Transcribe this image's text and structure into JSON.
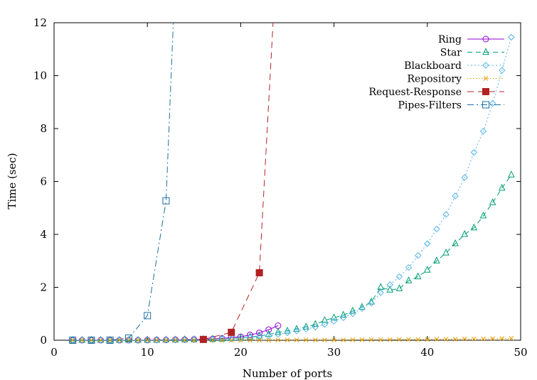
{
  "chart_data": {
    "type": "line",
    "title": "",
    "xlabel": "Number of ports",
    "ylabel": "Time (sec)",
    "xlim": [
      0,
      50
    ],
    "ylim": [
      0,
      12
    ],
    "xticks": [
      0,
      10,
      20,
      30,
      40,
      50
    ],
    "yticks": [
      0,
      2,
      4,
      6,
      8,
      10,
      12
    ],
    "grid": false,
    "legend_position": "top-right",
    "series": [
      {
        "name": "Ring",
        "color": "#9400d3",
        "dash": "solid",
        "marker": "circle",
        "x": [
          2,
          3,
          4,
          5,
          6,
          7,
          8,
          9,
          10,
          11,
          12,
          13,
          14,
          15,
          16,
          17,
          18,
          19,
          20,
          21,
          22,
          23,
          24
        ],
        "y": [
          0,
          0,
          0,
          0,
          0,
          0,
          0,
          0,
          0.005,
          0.01,
          0.01,
          0.02,
          0.02,
          0.03,
          0.04,
          0.05,
          0.07,
          0.1,
          0.13,
          0.2,
          0.28,
          0.4,
          0.55
        ]
      },
      {
        "name": "Star",
        "color": "#009e73",
        "dash": "dash",
        "marker": "triangle",
        "x": [
          2,
          3,
          4,
          5,
          6,
          7,
          8,
          9,
          10,
          11,
          12,
          13,
          14,
          15,
          16,
          17,
          18,
          19,
          20,
          21,
          22,
          23,
          24,
          25,
          26,
          27,
          28,
          29,
          30,
          31,
          32,
          33,
          34,
          35,
          36,
          37,
          38,
          39,
          40,
          41,
          42,
          43,
          44,
          45,
          46,
          47,
          48,
          49
        ],
        "y": [
          0,
          0,
          0,
          0,
          0,
          0,
          0,
          0,
          0,
          0,
          0.01,
          0.01,
          0.02,
          0.02,
          0.03,
          0.04,
          0.05,
          0.07,
          0.09,
          0.12,
          0.16,
          0.22,
          0.3,
          0.35,
          0.42,
          0.5,
          0.6,
          0.75,
          0.85,
          0.95,
          1.1,
          1.25,
          1.45,
          2.0,
          1.9,
          1.95,
          2.25,
          2.4,
          2.65,
          3.0,
          3.3,
          3.65,
          4.0,
          4.25,
          4.7,
          5.2,
          5.75,
          6.25
        ]
      },
      {
        "name": "Blackboard",
        "color": "#56b4e9",
        "dash": "dot",
        "marker": "diamond",
        "x": [
          2,
          3,
          4,
          5,
          6,
          7,
          8,
          9,
          10,
          11,
          12,
          13,
          14,
          15,
          16,
          17,
          18,
          19,
          20,
          21,
          22,
          23,
          24,
          25,
          26,
          27,
          28,
          29,
          30,
          31,
          32,
          33,
          34,
          35,
          36,
          37,
          38,
          39,
          40,
          41,
          42,
          43,
          44,
          45,
          46,
          47,
          48,
          49
        ],
        "y": [
          0,
          0,
          0,
          0,
          0,
          0,
          0,
          0,
          0,
          0,
          0.01,
          0.01,
          0.01,
          0.02,
          0.02,
          0.03,
          0.04,
          0.05,
          0.07,
          0.1,
          0.13,
          0.17,
          0.22,
          0.28,
          0.35,
          0.42,
          0.5,
          0.6,
          0.72,
          0.85,
          1.0,
          1.2,
          1.4,
          1.8,
          2.1,
          2.4,
          2.75,
          3.2,
          3.65,
          4.2,
          4.75,
          5.45,
          6.15,
          7.1,
          7.9,
          8.95,
          10.2,
          11.45
        ]
      },
      {
        "name": "Repository",
        "color": "#e69f00",
        "dash": "dotted",
        "marker": "cross",
        "x": [
          2,
          3,
          4,
          5,
          6,
          7,
          8,
          9,
          10,
          11,
          12,
          13,
          14,
          15,
          16,
          17,
          18,
          19,
          20,
          21,
          22,
          23,
          24,
          25,
          26,
          27,
          28,
          29,
          30,
          31,
          32,
          33,
          34,
          35,
          36,
          37,
          38,
          39,
          40,
          41,
          42,
          43,
          44,
          45,
          46,
          47,
          48,
          49
        ],
        "y": [
          0,
          0,
          0,
          0,
          0,
          0,
          0,
          0,
          0,
          0,
          0,
          0,
          0,
          0,
          0,
          0,
          0,
          0,
          0,
          0,
          0,
          0,
          0.01,
          0.01,
          0.01,
          0.01,
          0.01,
          0.01,
          0.01,
          0.01,
          0.02,
          0.02,
          0.02,
          0.02,
          0.02,
          0.03,
          0.03,
          0.03,
          0.03,
          0.04,
          0.04,
          0.04,
          0.05,
          0.05,
          0.05,
          0.06,
          0.06,
          0.07
        ]
      },
      {
        "name": "Request-Response",
        "color": "#b22222",
        "dash": "longdash",
        "marker": "filled-square",
        "x": [
          16,
          19,
          22,
          23.5
        ],
        "y": [
          0.03,
          0.3,
          2.55,
          12.2
        ]
      },
      {
        "name": "Pipes-Filters",
        "color": "#1a6fa0",
        "dash": "dashdot",
        "marker": "square",
        "x": [
          2,
          4,
          6,
          8,
          10,
          12,
          12.8
        ],
        "y": [
          0,
          0,
          0,
          0.08,
          0.93,
          5.27,
          12.2
        ]
      }
    ]
  }
}
